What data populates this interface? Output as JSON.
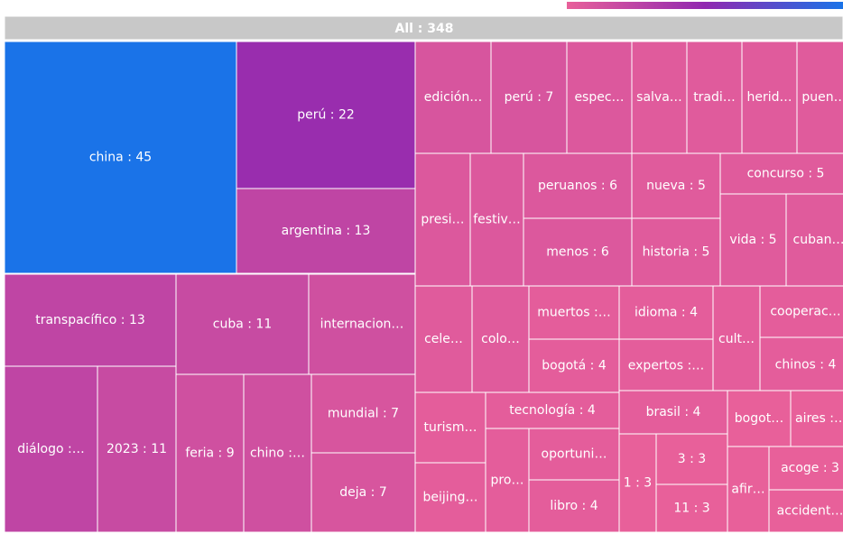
{
  "chart_data": {
    "type": "treemap",
    "root": {
      "label": "All : 348",
      "value": 348
    },
    "colorscale": [
      "#e8609a",
      "#9128b0",
      "#1a73e8"
    ],
    "labels": [
      "china : 45",
      "perú : 22",
      "argentina : 13",
      "transpacífico : 13",
      "cuba : 11",
      "internacion…",
      "diálogo :…",
      "2023 : 11",
      "feria : 9",
      "chino :…",
      "mundial : 7",
      "deja : 7",
      "edición…",
      "perú : 7",
      "espec…",
      "salva…",
      "tradi…",
      "herid…",
      "puen…",
      "presi…",
      "festiv…",
      "peruanos : 6",
      "menos : 6",
      "nueva : 5",
      "historia : 5",
      "concurso : 5",
      "vida : 5",
      "cuban…",
      "cele…",
      "colo…",
      "muertos :…",
      "bogotá : 4",
      "idioma : 4",
      "expertos :…",
      "cult…",
      "cooperac…",
      "chinos : 4",
      "turism…",
      "beijing…",
      "tecnología : 4",
      "pro…",
      "oportuni…",
      "libro : 4",
      "brasil : 4",
      "1 : 3",
      "3 : 3",
      "11 : 3",
      "bogot…",
      "aires :…",
      "afir…",
      "acoge : 3",
      "accident…"
    ],
    "values": [
      45,
      22,
      13,
      13,
      11,
      9,
      13,
      11,
      9,
      9,
      7,
      7,
      7,
      7,
      6,
      5,
      5,
      5,
      5,
      6,
      6,
      6,
      6,
      5,
      5,
      5,
      5,
      5,
      5,
      5,
      4,
      4,
      4,
      4,
      4,
      4,
      4,
      4,
      4,
      4,
      4,
      4,
      4,
      4,
      3,
      3,
      3,
      3,
      3,
      3,
      3,
      3
    ]
  }
}
